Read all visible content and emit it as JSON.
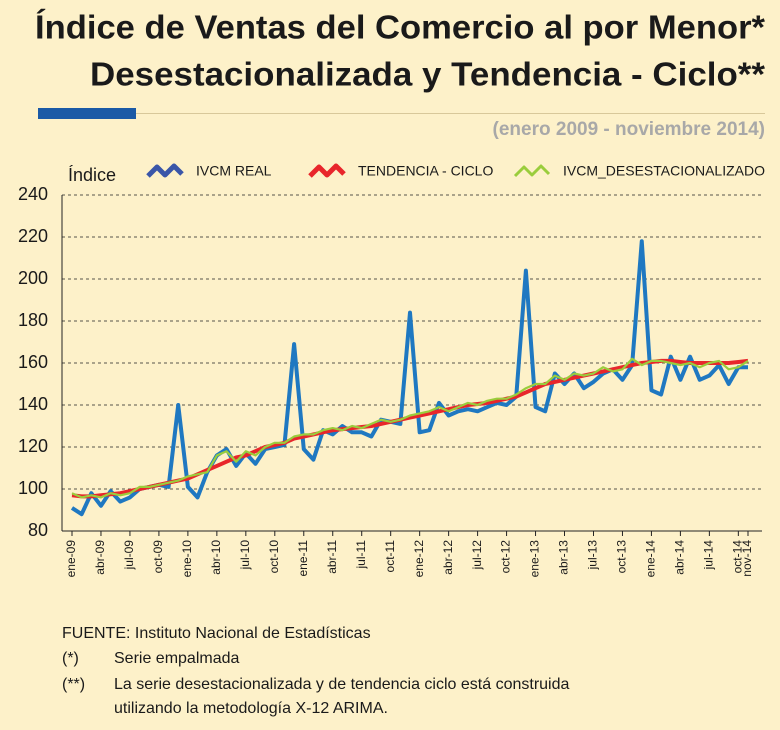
{
  "chart_data": {
    "type": "line",
    "title": [
      "Índice de Ventas del Comercio al por Menor*",
      "Desestacionalizada y Tendencia - Ciclo**"
    ],
    "subtitle": "(enero 2009 - noviembre 2014)",
    "y_label": "Índice",
    "categories": [
      "ene-09",
      null,
      null,
      "abr-09",
      null,
      null,
      "jul-09",
      null,
      null,
      "oct-09",
      null,
      null,
      "ene-10",
      null,
      null,
      "abr-10",
      null,
      null,
      "jul-10",
      null,
      null,
      "oct-10",
      null,
      null,
      "ene-11",
      null,
      null,
      "abr-11",
      null,
      null,
      "jul-11",
      null,
      null,
      "oct-11",
      null,
      null,
      "ene-12",
      null,
      null,
      "abr-12",
      null,
      null,
      "jul-12",
      null,
      null,
      "oct-12",
      null,
      null,
      "ene-13",
      null,
      null,
      "abr-13",
      null,
      null,
      "jul-13",
      null,
      null,
      "oct-13",
      null,
      null,
      "ene-14",
      null,
      null,
      "abr-14",
      null,
      null,
      "jul-14",
      null,
      null,
      "oct-14",
      "nov-14"
    ],
    "series": [
      {
        "name": "IVCM REAL",
        "color": "#1f78c1",
        "legend_color": "#3a56a8",
        "width": 4,
        "values": [
          91,
          88,
          98,
          92,
          99,
          94,
          96,
          100,
          101,
          102,
          101,
          140,
          101,
          96,
          108,
          116,
          119,
          111,
          117,
          112,
          119,
          120,
          121,
          169,
          119,
          114,
          128,
          126,
          130,
          127,
          127,
          125,
          133,
          132,
          131,
          184,
          127,
          128,
          141,
          135,
          137,
          138,
          137,
          139,
          141,
          140,
          144,
          204,
          139,
          137,
          155,
          150,
          155,
          148,
          151,
          155,
          157,
          152,
          159,
          218,
          147,
          145,
          163,
          152,
          163,
          152,
          154,
          159,
          150,
          158,
          158
        ]
      },
      {
        "name": "TENDENCIA - CICLO",
        "color": "#e8262b",
        "legend_color": "#e8262b",
        "width": 4,
        "values": [
          97,
          96.5,
          96.5,
          97,
          97.5,
          98,
          99,
          100,
          101,
          102,
          103,
          104,
          105,
          107,
          109,
          111,
          113,
          115,
          116,
          118,
          120,
          121,
          122,
          124,
          125,
          126,
          127,
          128,
          128.5,
          129,
          129.5,
          130,
          131,
          132,
          133,
          134,
          135,
          136,
          137,
          138,
          139,
          140,
          140.5,
          141,
          142,
          143,
          144,
          146,
          148,
          150,
          151,
          152,
          153,
          154,
          155,
          156,
          157,
          158,
          159,
          160,
          160.5,
          161,
          161,
          160.5,
          160,
          160,
          160,
          160,
          160,
          160.5,
          161
        ]
      },
      {
        "name": "IVCM_DESESTACIONALIZADO",
        "color": "#9acd3c",
        "legend_color": "#9acd3c",
        "width": 2.2,
        "values": [
          98,
          96,
          97,
          96,
          98,
          97,
          98,
          101,
          101,
          102,
          103,
          104,
          106,
          107,
          108,
          116,
          118,
          113,
          118,
          116,
          120,
          122,
          122,
          125,
          126,
          126,
          128,
          129,
          128,
          130,
          129,
          131,
          133,
          132,
          133,
          135,
          136,
          137,
          139,
          137,
          139,
          141,
          140,
          142,
          143,
          143,
          145,
          148,
          150,
          150,
          154,
          152,
          155,
          154,
          155,
          158,
          156,
          157,
          162,
          159,
          161,
          161,
          160,
          159,
          160,
          158,
          160,
          161,
          157,
          158,
          161
        ]
      }
    ],
    "ylim": [
      80,
      240
    ],
    "yticks": [
      80,
      100,
      120,
      140,
      160,
      180,
      200,
      220,
      240
    ],
    "grid": true,
    "source": "FUENTE: Instituto Nacional de Estadísticas",
    "notes": [
      {
        "mark": "(*)",
        "lines": [
          "Serie empalmada"
        ]
      },
      {
        "mark": "(**)",
        "lines": [
          "La serie desestacionalizada y de tendencia ciclo está construida",
          "utilizando la metodología X-12 ARIMA."
        ]
      }
    ]
  }
}
